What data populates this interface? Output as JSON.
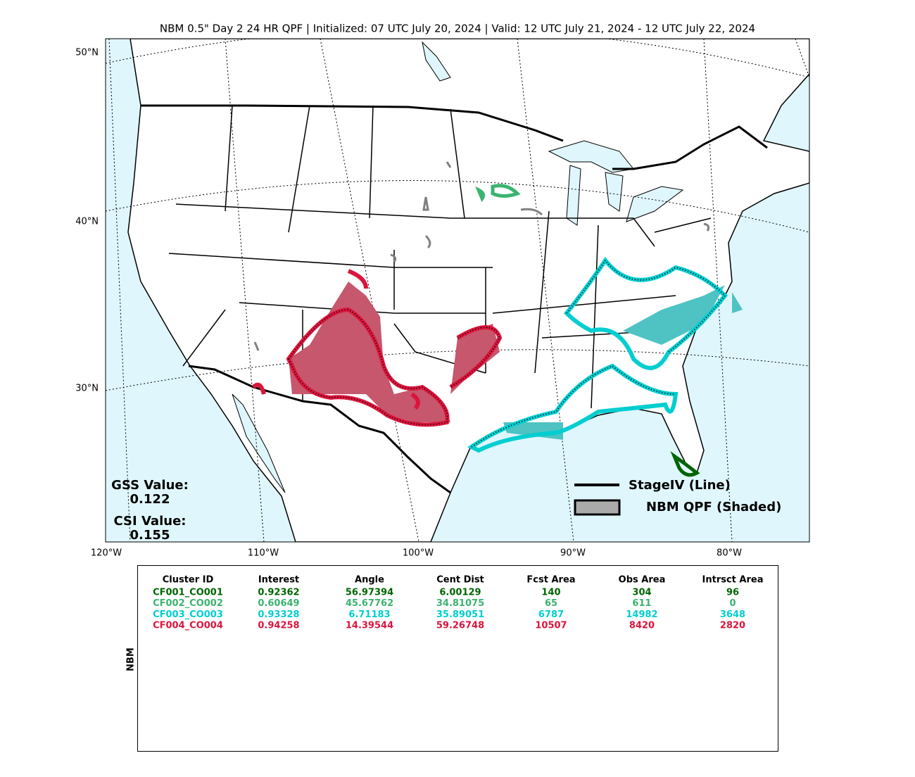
{
  "title": "NBM 0.5\" Day 2 24 HR QPF | Initialized: 07 UTC July 20, 2024 | Valid: 12 UTC July 21, 2024 - 12 UTC July 22, 2024",
  "map": {
    "lat_labels": [
      "50°N",
      "40°N",
      "30°N"
    ],
    "lon_labels": [
      "120°W",
      "110°W",
      "100°W",
      "90°W",
      "80°W"
    ]
  },
  "scores": {
    "gss_label": "GSS Value:",
    "gss": "0.122",
    "csi_label": "CSI Value:",
    "csi": "0.155"
  },
  "legend": {
    "line": "StageIV (Line)",
    "shaded": "NBM QPF (Shaded)"
  },
  "table": {
    "side_label": "NBM",
    "columns": [
      "Cluster ID",
      "Interest",
      "Angle",
      "Cent Dist",
      "Fcst Area",
      "Obs Area",
      "Intrsct Area"
    ],
    "rows": [
      {
        "color": "#006400",
        "cells": [
          "CF001_CO001",
          "0.92362",
          "56.97394",
          "6.00129",
          "140",
          "304",
          "96"
        ]
      },
      {
        "color": "#3cb371",
        "cells": [
          "CF002_CO002",
          "0.60649",
          "45.67762",
          "34.81075",
          "65",
          "611",
          "0"
        ]
      },
      {
        "color": "#00ced1",
        "cells": [
          "CF003_CO003",
          "0.93328",
          "6.71183",
          "35.89051",
          "6787",
          "14982",
          "3648"
        ]
      },
      {
        "color": "#dc143c",
        "cells": [
          "CF004_CO004",
          "0.94258",
          "14.39544",
          "59.26748",
          "10507",
          "8420",
          "2820"
        ]
      }
    ]
  }
}
